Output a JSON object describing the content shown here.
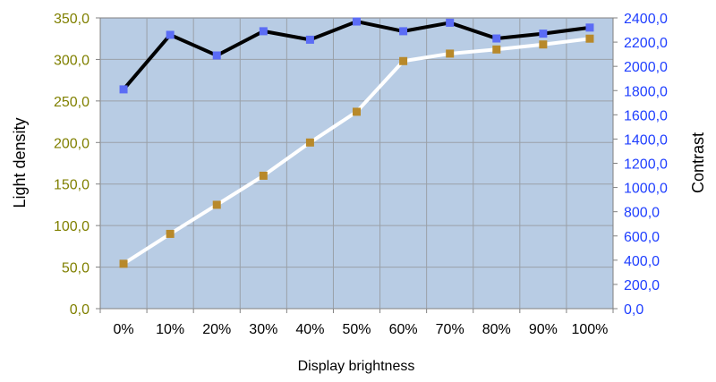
{
  "chart_data": {
    "type": "line",
    "title": "",
    "xlabel": "Display brightness",
    "ylabel_left": "Light density",
    "ylabel_right": "Contrast",
    "categories": [
      "0%",
      "10%",
      "20%",
      "30%",
      "40%",
      "50%",
      "60%",
      "70%",
      "80%",
      "90%",
      "100%"
    ],
    "ylim_left": [
      0,
      350
    ],
    "ylim_right": [
      0,
      2400
    ],
    "yticks_left": [
      "0,0",
      "50,0",
      "100,0",
      "150,0",
      "200,0",
      "250,0",
      "300,0",
      "350,0"
    ],
    "yticks_right": [
      "0,0",
      "200,0",
      "400,0",
      "600,0",
      "800,0",
      "1000,0",
      "1200,0",
      "1400,0",
      "1600,0",
      "1800,0",
      "2000,0",
      "2200,0",
      "2400,0"
    ],
    "grid": true,
    "plot_background": "#b8cce4",
    "left_axis_color": "#808000",
    "right_axis_color": "#1f3fff",
    "series": [
      {
        "axis": "left",
        "line_color": "#ffffff",
        "marker_color": "#b8892a",
        "values": [
          54,
          90,
          125,
          160,
          200,
          237,
          298,
          307,
          312,
          318,
          325
        ]
      },
      {
        "axis": "right",
        "line_color": "#000000",
        "marker_color": "#5b6cf5",
        "values": [
          1810,
          2260,
          2090,
          2290,
          2220,
          2370,
          2290,
          2360,
          2230,
          2270,
          2320
        ]
      }
    ]
  }
}
